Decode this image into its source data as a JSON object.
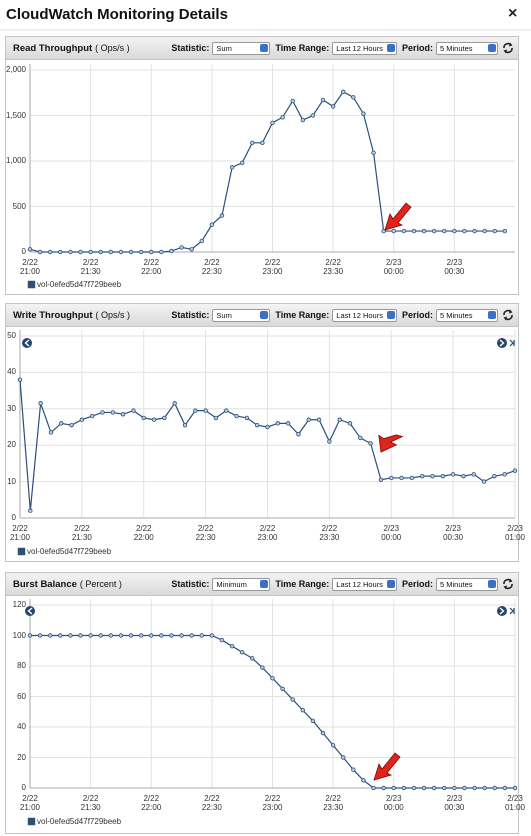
{
  "dialog": {
    "title": "CloudWatch Monitoring Details",
    "close": "×"
  },
  "panels": [
    {
      "title": "Read Throughput",
      "unit": "( Ops/s )",
      "controls": [
        {
          "label": "Statistic:",
          "value": "Sum"
        },
        {
          "label": "Time Range:",
          "value": "Last 12 Hours"
        },
        {
          "label": "Period:",
          "value": "5 Minutes"
        }
      ]
    },
    {
      "title": "Write Throughput",
      "unit": "( Ops/s )",
      "controls": [
        {
          "label": "Statistic:",
          "value": "Sum"
        },
        {
          "label": "Time Range:",
          "value": "Last 12 Hours"
        },
        {
          "label": "Period:",
          "value": "5 Minutes"
        }
      ]
    },
    {
      "title": "Burst Balance",
      "unit": "( Percent )",
      "controls": [
        {
          "label": "Statistic:",
          "value": "Minimum"
        },
        {
          "label": "Time Range:",
          "value": "Last 12 Hours"
        },
        {
          "label": "Period:",
          "value": "5 Minutes"
        }
      ]
    }
  ],
  "chart_data": [
    {
      "type": "line",
      "categories": [
        "2/22\n21:00",
        null,
        null,
        null,
        null,
        null,
        "2/22\n21:30",
        null,
        null,
        null,
        null,
        null,
        "2/22\n22:00",
        null,
        null,
        null,
        null,
        null,
        "2/22\n22:30",
        null,
        null,
        null,
        null,
        null,
        "2/22\n23:00",
        null,
        null,
        null,
        null,
        null,
        "2/22\n23:30",
        null,
        null,
        null,
        null,
        null,
        "2/23\n00:00",
        null,
        null,
        null,
        null,
        null,
        "2/23\n00:30",
        null,
        null,
        null,
        null,
        null,
        null
      ],
      "series": [
        {
          "name": "vol-0efed5d47f729beeb",
          "color": "#2c4f7c",
          "values": [
            30,
            0,
            0,
            0,
            0,
            0,
            0,
            0,
            0,
            0,
            0,
            0,
            0,
            0,
            10,
            50,
            30,
            120,
            300,
            400,
            930,
            980,
            1200,
            1200,
            1420,
            1480,
            1660,
            1450,
            1500,
            1670,
            1600,
            1760,
            1700,
            1520,
            1090,
            230,
            230,
            230,
            230,
            230,
            230,
            230,
            230,
            230,
            230,
            230,
            230,
            230,
            null
          ]
        }
      ],
      "ylim": [
        0,
        2000
      ],
      "yticks": [
        0,
        500,
        {
          "value": 1000,
          "label": "1,000"
        },
        {
          "value": 1500,
          "label": "1,500"
        },
        {
          "value": 2000,
          "label": "2,000"
        }
      ],
      "grid": true
    },
    {
      "type": "line",
      "categories": [
        "2/22\n21:00",
        null,
        null,
        null,
        null,
        null,
        "2/22\n21:30",
        null,
        null,
        null,
        null,
        null,
        "2/22\n22:00",
        null,
        null,
        null,
        null,
        null,
        "2/22\n22:30",
        null,
        null,
        null,
        null,
        null,
        "2/22\n23:00",
        null,
        null,
        null,
        null,
        null,
        "2/22\n23:30",
        null,
        null,
        null,
        null,
        null,
        "2/23\n00:00",
        null,
        null,
        null,
        null,
        null,
        "2/23\n00:30",
        null,
        null,
        null,
        null,
        null,
        "2/23\n01:00"
      ],
      "series": [
        {
          "name": "vol-0efed5d47f729beeb",
          "color": "#2c4f7c",
          "values": [
            38,
            2,
            31.5,
            23.5,
            26,
            25.5,
            27,
            28,
            29,
            29,
            28.5,
            29.5,
            27.5,
            27,
            27.5,
            31.5,
            25.5,
            29.5,
            29.5,
            27.5,
            29.5,
            28,
            27.5,
            25.5,
            25,
            26,
            26,
            23,
            27,
            27,
            21,
            27,
            26,
            22,
            20.5,
            10.5,
            11,
            11,
            11,
            11.5,
            11.5,
            11.5,
            12,
            11.5,
            12,
            10,
            11.5,
            12,
            13
          ]
        }
      ],
      "ylim": [
        0,
        50
      ],
      "yticks": [
        0,
        10,
        20,
        30,
        40,
        50
      ],
      "grid": true
    },
    {
      "type": "line",
      "categories": [
        "2/22\n21:00",
        null,
        null,
        null,
        null,
        null,
        "2/22\n21:30",
        null,
        null,
        null,
        null,
        null,
        "2/22\n22:00",
        null,
        null,
        null,
        null,
        null,
        "2/22\n22:30",
        null,
        null,
        null,
        null,
        null,
        "2/22\n23:00",
        null,
        null,
        null,
        null,
        null,
        "2/22\n23:30",
        null,
        null,
        null,
        null,
        null,
        "2/23\n00:00",
        null,
        null,
        null,
        null,
        null,
        "2/23\n00:30",
        null,
        null,
        null,
        null,
        null,
        "2/23\n01:00"
      ],
      "series": [
        {
          "name": "vol-0efed5d47f729beeb",
          "color": "#2c4f7c",
          "values": [
            100,
            100,
            100,
            100,
            100,
            100,
            100,
            100,
            100,
            100,
            100,
            100,
            100,
            100,
            100,
            100,
            100,
            100,
            100,
            97,
            93,
            89,
            85,
            79,
            72,
            65,
            58,
            51,
            44,
            36,
            28,
            20,
            12,
            5,
            0,
            0,
            0,
            0,
            0,
            0,
            0,
            0,
            0,
            0,
            0,
            0,
            0,
            0,
            0
          ]
        }
      ],
      "ylim": [
        0,
        120
      ],
      "yticks": [
        0,
        20,
        40,
        60,
        80,
        100,
        120
      ],
      "grid": true
    }
  ]
}
